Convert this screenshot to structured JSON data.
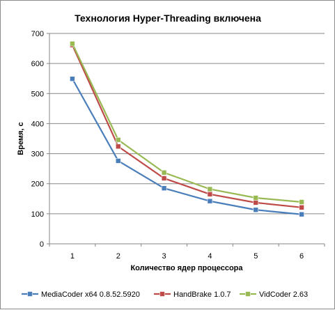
{
  "chart_data": {
    "type": "line",
    "title": "Технология Hyper-Threading включена",
    "xlabel": "Количество  ядер процессора",
    "ylabel": "Время, с",
    "x": [
      1,
      2,
      3,
      4,
      5,
      6
    ],
    "ylim": [
      0,
      700
    ],
    "yticks": [
      0,
      100,
      200,
      300,
      400,
      500,
      600,
      700
    ],
    "grid": "horizontal",
    "legend_position": "bottom",
    "series": [
      {
        "name": "MediaCoder x64 0.8.52.5920",
        "color": "#4a7ebb",
        "marker": "square",
        "values": [
          549,
          276,
          185,
          142,
          113,
          98
        ]
      },
      {
        "name": "HandBrake 1.0.7",
        "color": "#be4b48",
        "marker": "square",
        "values": [
          661,
          324,
          218,
          165,
          137,
          121
        ]
      },
      {
        "name": "VidCoder 2.63",
        "color": "#98b954",
        "marker": "square",
        "values": [
          666,
          346,
          237,
          182,
          153,
          139
        ]
      }
    ]
  }
}
